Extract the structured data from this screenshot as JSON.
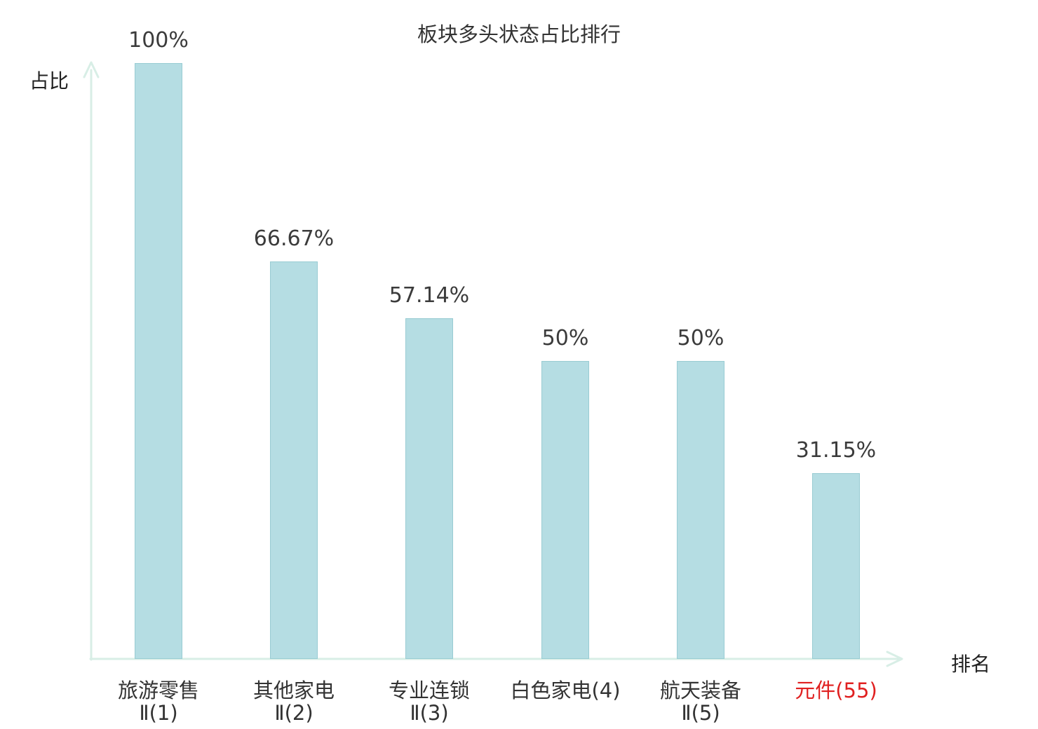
{
  "chart_data": {
    "type": "bar",
    "title": "板块多头状态占比排行",
    "xlabel": "排名",
    "ylabel": "占比",
    "categories": [
      "旅游零售Ⅱ(1)",
      "其他家电Ⅱ(2)",
      "专业连锁Ⅱ(3)",
      "白色家电(4)",
      "航天装备Ⅱ(5)",
      "元件(55)"
    ],
    "category_lines": [
      [
        "旅游零售",
        "Ⅱ(1)"
      ],
      [
        "其他家电",
        "Ⅱ(2)"
      ],
      [
        "专业连锁",
        "Ⅱ(3)"
      ],
      [
        "白色家电(4)"
      ],
      [
        "航天装备",
        "Ⅱ(5)"
      ],
      [
        "元件(55)"
      ]
    ],
    "values": [
      100,
      66.67,
      57.14,
      50,
      50,
      31.15
    ],
    "value_labels": [
      "100%",
      "66.67%",
      "57.14%",
      "50%",
      "50%",
      "31.15%"
    ],
    "ylim": [
      0,
      100
    ],
    "grid": false,
    "legend": "none",
    "highlight_index": 5,
    "bar_color": "#b5dde3",
    "bar_border_color": "#99ccd3",
    "axis_color": "#d8eee6",
    "text_color": "#333333",
    "value_text_color": "#3b3b3b",
    "highlight_text_color": "#e02020"
  }
}
